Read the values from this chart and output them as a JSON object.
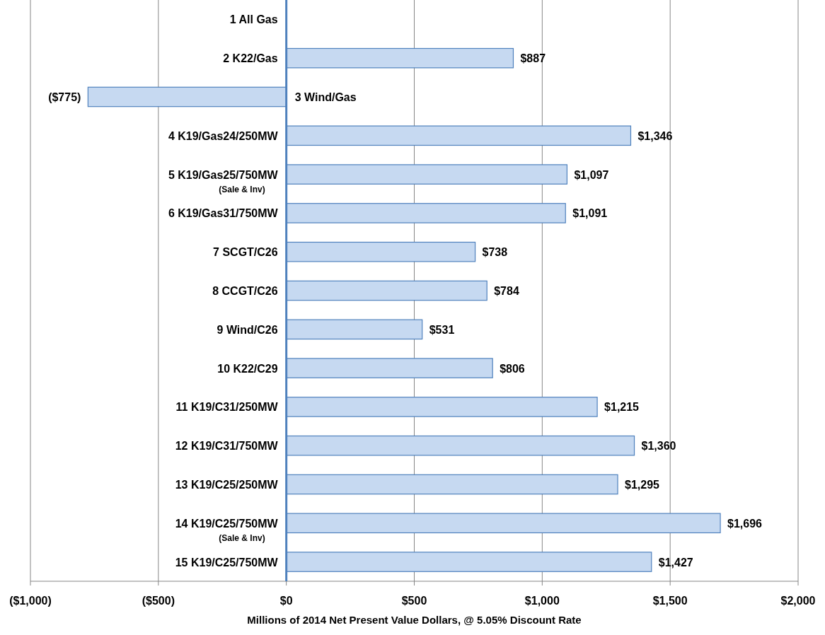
{
  "chart_data": {
    "type": "bar",
    "orientation": "horizontal",
    "xlabel": "Millions of 2014 Net Present Value Dollars, @ 5.05% Discount Rate",
    "categories": [
      "1 All Gas",
      "2 K22/Gas",
      "3 Wind/Gas",
      "4 K19/Gas24/250MW",
      "5 K19/Gas25/750MW\n(Sale & Inv)",
      "6 K19/Gas31/750MW",
      "7 SCGT/C26",
      "8 CCGT/C26",
      "9 Wind/C26",
      "10 K22/C29",
      "11 K19/C31/250MW",
      "12 K19/C31/750MW",
      "13 K19/C25/250MW",
      "14 K19/C25/750MW\n(Sale & Inv)",
      "15 K19/C25/750MW"
    ],
    "values": [
      null,
      887,
      -775,
      1346,
      1097,
      1091,
      738,
      784,
      531,
      806,
      1215,
      1360,
      1295,
      1696,
      1427
    ],
    "value_labels": [
      null,
      "$887",
      "($775)",
      "$1,346",
      "$1,097",
      "$1,091",
      "$738",
      "$784",
      "$531",
      "$806",
      "$1,215",
      "$1,360",
      "$1,295",
      "$1,696",
      "$1,427"
    ],
    "color": "#c6d9f1",
    "xlim": [
      -1000,
      2000
    ],
    "xticks": [
      {
        "value": -1000,
        "label": "($1,000)"
      },
      {
        "value": -500,
        "label": "($500)"
      },
      {
        "value": 0,
        "label": "$0"
      },
      {
        "value": 500,
        "label": "$500"
      },
      {
        "value": 1000,
        "label": "$1,000"
      },
      {
        "value": 1500,
        "label": "$1,500"
      },
      {
        "value": 2000,
        "label": "$2,000"
      }
    ],
    "grid": "x"
  }
}
